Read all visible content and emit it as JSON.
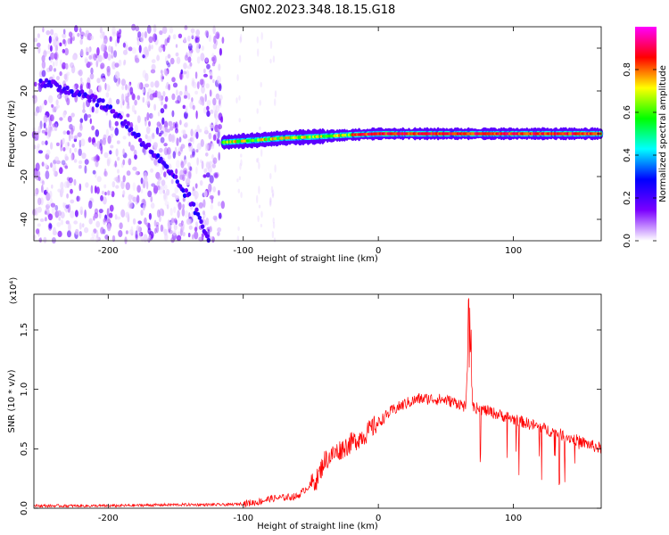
{
  "title": "GN02.2023.348.18.15.G18",
  "chart_data": [
    {
      "type": "heatmap",
      "xlabel": "Height of straight line (km)",
      "ylabel": "Frequency (Hz)",
      "xlim": [
        -255,
        165
      ],
      "ylim": [
        -50,
        50
      ],
      "xticks": [
        -200,
        -100,
        0,
        100
      ],
      "yticks": [
        -40,
        -20,
        0,
        20,
        40
      ],
      "colorbar": {
        "label": "Normalized spectral amplitude",
        "range": [
          0,
          1
        ],
        "ticks": [
          0.0,
          0.2,
          0.4,
          0.6,
          0.8
        ],
        "colormap": [
          "#ffffff",
          "#7b00ff",
          "#0000ff",
          "#00ffff",
          "#00ff00",
          "#ffff00",
          "#ff0000",
          "#ff00ff"
        ]
      },
      "features": {
        "noise_region_x": [
          -255,
          -115
        ],
        "diagonal_track": [
          {
            "x": -250,
            "y": 24
          },
          {
            "x": -215,
            "y": 18
          },
          {
            "x": -195,
            "y": 10
          },
          {
            "x": -165,
            "y": -10
          },
          {
            "x": -140,
            "y": -30
          },
          {
            "x": -125,
            "y": -50
          }
        ],
        "signal_track": [
          {
            "x": -115,
            "y": -4
          },
          {
            "x": -90,
            "y": -3
          },
          {
            "x": -70,
            "y": -2
          },
          {
            "x": -50,
            "y": -1.5
          },
          {
            "x": -20,
            "y": -0.5
          },
          {
            "x": 0,
            "y": 0
          },
          {
            "x": 165,
            "y": 0
          }
        ]
      }
    },
    {
      "type": "line",
      "xlabel": "Height of straight line (km)",
      "ylabel": "SNR (10 * v/v)",
      "multiplier": "(x10⁴)",
      "xlim": [
        -255,
        165
      ],
      "ylim": [
        0,
        1.8
      ],
      "xticks": [
        -200,
        -100,
        0,
        100
      ],
      "yticks": [
        0.0,
        0.5,
        1.0,
        1.5
      ],
      "color": "#ff0000",
      "series": [
        {
          "x": [
            -255,
            -200,
            -150,
            -110,
            -90,
            -80,
            -60,
            -45,
            -40,
            -30,
            -20,
            -10,
            0,
            10,
            20,
            30,
            40,
            50,
            60,
            65,
            67,
            70,
            80,
            100,
            120,
            140,
            165
          ],
          "y": [
            0.02,
            0.02,
            0.03,
            0.03,
            0.05,
            0.08,
            0.1,
            0.25,
            0.4,
            0.48,
            0.55,
            0.62,
            0.72,
            0.82,
            0.88,
            0.92,
            0.92,
            0.91,
            0.88,
            0.85,
            1.6,
            0.85,
            0.82,
            0.75,
            0.68,
            0.6,
            0.5
          ]
        }
      ]
    }
  ]
}
